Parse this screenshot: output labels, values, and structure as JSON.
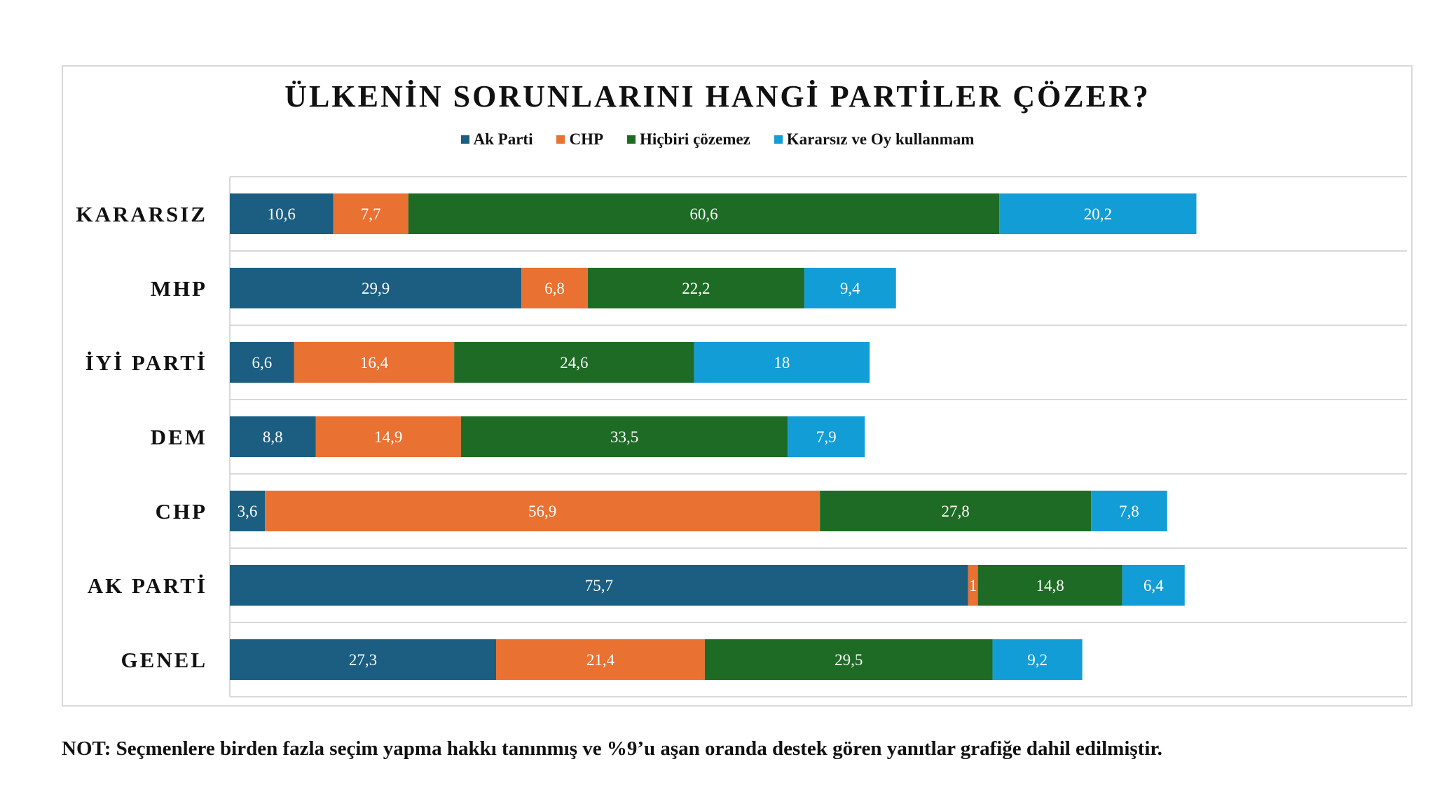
{
  "colors": {
    "ak_parti": "#1b5e82",
    "chp": "#e97132",
    "hicbiri": "#1e6b25",
    "kararsiz": "#139dd6",
    "grid": "#d9d9d9"
  },
  "chart_data": {
    "type": "bar",
    "orientation": "horizontal",
    "stacked": true,
    "title": "ÜLKENİN SORUNLARINI HANGİ PARTİLER ÇÖZER?",
    "legend_position": "top",
    "categories": [
      "KARARSIZ",
      "MHP",
      "İYİ PARTİ",
      "DEM",
      "CHP",
      "AK PARTİ",
      "GENEL"
    ],
    "series": [
      {
        "name": "Ak Parti",
        "color_key": "ak_parti",
        "values": [
          "10,6",
          "29,9",
          "6,6",
          "8,8",
          "3,6",
          "75,7",
          "27,3"
        ]
      },
      {
        "name": "CHP",
        "color_key": "chp",
        "values": [
          "7,7",
          "6,8",
          "16,4",
          "14,9",
          "56,9",
          "1",
          "21,4"
        ]
      },
      {
        "name": "Hiçbiri çözemez",
        "color_key": "hicbiri",
        "values": [
          "60,6",
          "22,2",
          "24,6",
          "33,5",
          "27,8",
          "14,8",
          "29,5"
        ]
      },
      {
        "name": "Kararsız ve Oy kullanmam",
        "color_key": "kararsiz",
        "values": [
          "20,2",
          "9,4",
          "18",
          "7,9",
          "7,8",
          "6,4",
          "9,2"
        ]
      }
    ]
  },
  "note": "NOT: Seçmenlere birden fazla seçim yapma hakkı tanınmış ve %9’u aşan oranda destek gören yanıtlar grafiğe dahil edilmiştir."
}
